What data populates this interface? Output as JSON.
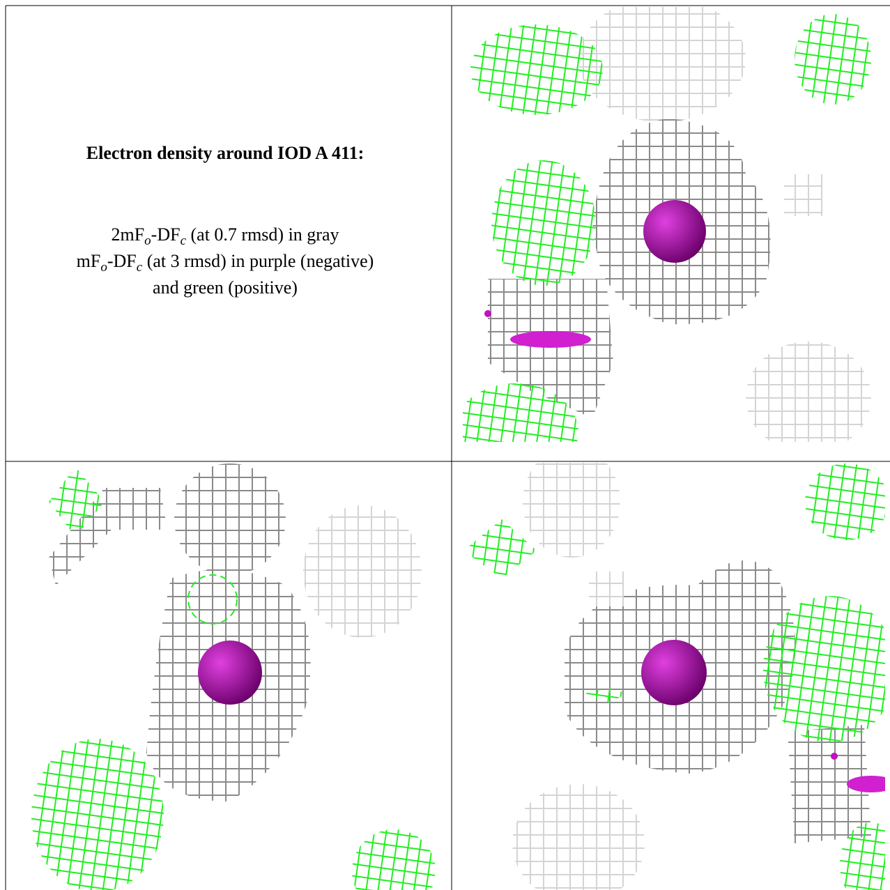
{
  "panel_text": {
    "title": "Electron density around IOD A 411:",
    "lines": [
      [
        "2mF",
        "o",
        "-DF",
        "c",
        " (at 0.7 rmsd) in gray"
      ],
      [
        "mF",
        "o",
        "-DF",
        "c",
        " (at 3 rmsd) in purple (negative)"
      ],
      [
        "and green (positive)"
      ]
    ]
  }
}
